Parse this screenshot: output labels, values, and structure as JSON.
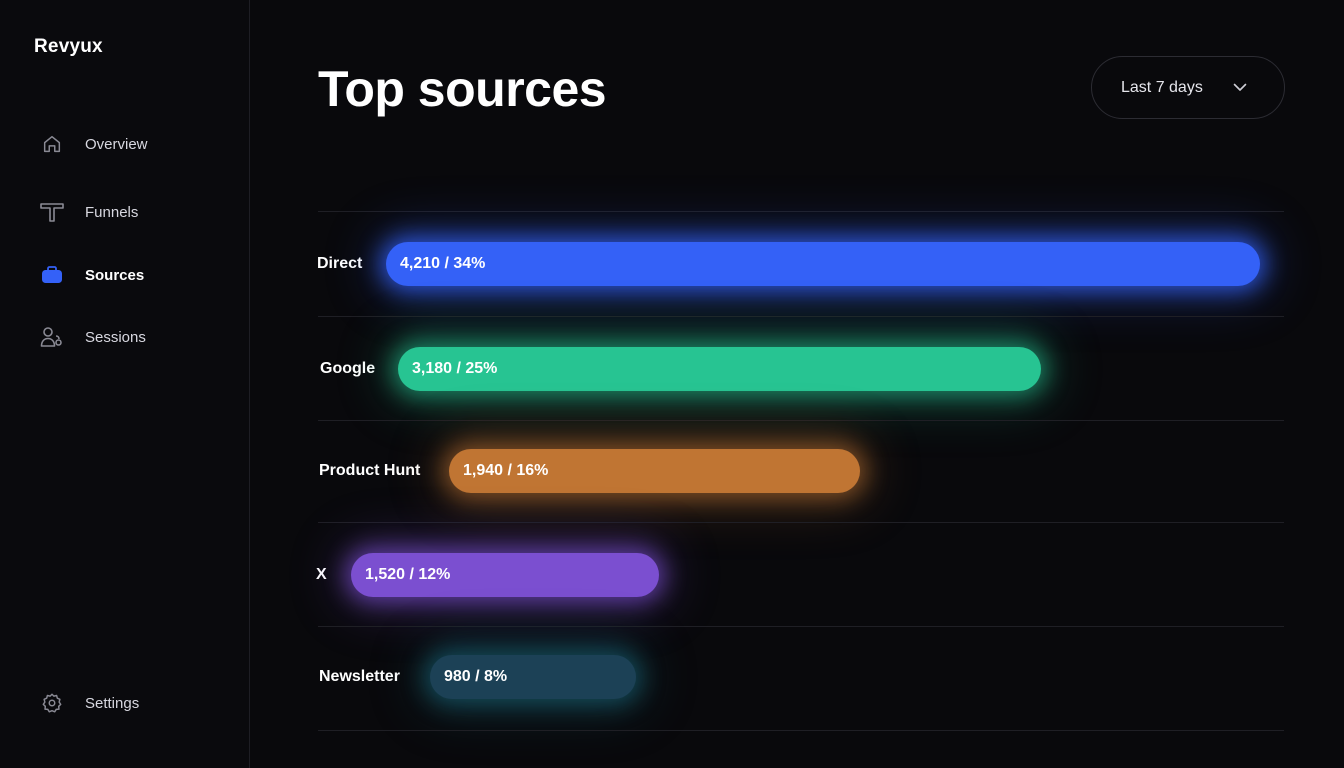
{
  "app": {
    "brand": "Revyux"
  },
  "sidebar": {
    "items": [
      {
        "key": "overview",
        "label": "Overview",
        "icon": "home-icon",
        "active": false
      },
      {
        "key": "funnels",
        "label": "Funnels",
        "icon": "funnel-icon",
        "active": false
      },
      {
        "key": "sources",
        "label": "Sources",
        "icon": "briefcase-icon",
        "active": true
      },
      {
        "key": "sessions",
        "label": "Sessions",
        "icon": "users-icon",
        "active": false
      }
    ],
    "settings": {
      "label": "Settings",
      "icon": "gear-icon"
    }
  },
  "header": {
    "title": "Top sources",
    "range": {
      "selected": "Last 7 days"
    }
  },
  "colors": {
    "accent": "#3461f7",
    "direct": "#3461f7",
    "google": "#27c492",
    "product_hunt": "#c07533",
    "x": "#7b4fd0",
    "newsletter": "#1c4156"
  },
  "sources": [
    {
      "name": "Direct",
      "value": "4,210 / 34%",
      "fraction": 0.34,
      "color": "#3461f7",
      "glow": "rgba(52,97,247,0.75)"
    },
    {
      "name": "Google",
      "value": "3,180 / 25%",
      "fraction": 0.25,
      "color": "#27c492",
      "glow": "rgba(39,196,146,0.55)"
    },
    {
      "name": "Product Hunt",
      "value": "1,940 / 16%",
      "fraction": 0.16,
      "color": "#c07533",
      "glow": "rgba(192,117,51,0.55)"
    },
    {
      "name": "X",
      "value": "1,520 / 12%",
      "fraction": 0.12,
      "color": "#7b4fd0",
      "glow": "rgba(123,79,208,0.65)"
    },
    {
      "name": "Newsletter",
      "value": "980 / 8%",
      "fraction": 0.08,
      "color": "#1c4156",
      "glow": "rgba(28,110,130,0.55)"
    }
  ]
}
